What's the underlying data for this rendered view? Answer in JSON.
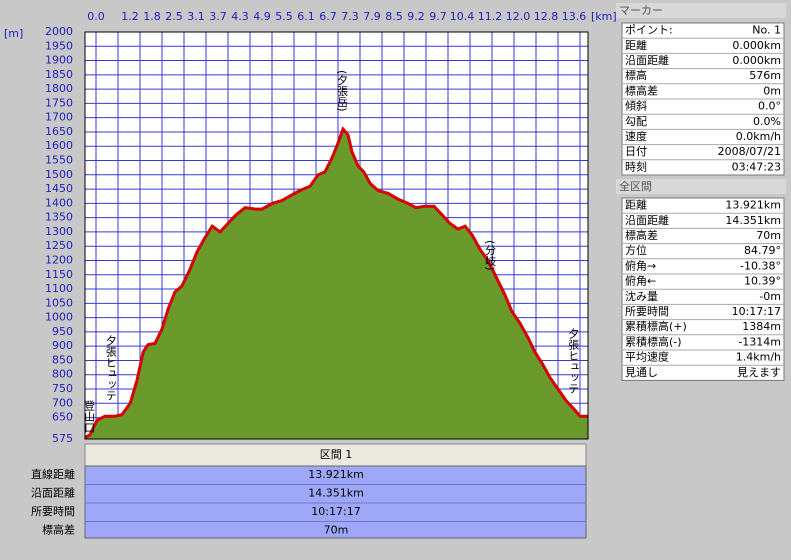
{
  "chart_data": {
    "type": "area",
    "y_unit": "[m]",
    "x_unit": "[km]",
    "top_axis_labels": [
      "0.0",
      "1.2",
      "1.8",
      "2.5",
      "3.1",
      "3.7",
      "4.3",
      "4.9",
      "5.5",
      "6.1",
      "6.7",
      "7.3",
      "7.9",
      "8.5",
      "9.2",
      "9.7",
      "10.4",
      "11.2",
      "12.0",
      "12.8",
      "13.6"
    ],
    "x": [
      0,
      0.14,
      0.33,
      0.55,
      0.83,
      1.02,
      1.25,
      1.44,
      1.61,
      1.74,
      1.94,
      2.13,
      2.3,
      2.49,
      2.68,
      2.91,
      3.1,
      3.32,
      3.52,
      3.74,
      3.96,
      4.18,
      4.43,
      4.71,
      4.9,
      5.18,
      5.45,
      5.73,
      5.95,
      6.23,
      6.45,
      6.64,
      6.84,
      7.0,
      7.14,
      7.28,
      7.39,
      7.56,
      7.72,
      7.89,
      8.11,
      8.39,
      8.66,
      8.94,
      9.16,
      9.41,
      9.66,
      9.88,
      10.1,
      10.32,
      10.52,
      10.71,
      10.93,
      11.15,
      11.35,
      11.62,
      11.82,
      12.04,
      12.26,
      12.45,
      12.65,
      12.87,
      13.09,
      13.31,
      13.53,
      13.7,
      13.92
    ],
    "series": [
      {
        "name": "標高",
        "color": "#d80000",
        "fill": "#6a9a2c",
        "values": [
          580,
          590,
          640,
          655,
          655,
          660,
          700,
          780,
          880,
          905,
          910,
          960,
          1030,
          1090,
          1110,
          1170,
          1230,
          1280,
          1320,
          1300,
          1330,
          1360,
          1385,
          1380,
          1380,
          1400,
          1410,
          1430,
          1445,
          1460,
          1500,
          1510,
          1560,
          1610,
          1660,
          1640,
          1580,
          1530,
          1510,
          1470,
          1445,
          1435,
          1415,
          1400,
          1385,
          1390,
          1390,
          1360,
          1330,
          1310,
          1320,
          1290,
          1240,
          1200,
          1150,
          1080,
          1020,
          980,
          930,
          880,
          840,
          790,
          750,
          710,
          680,
          655,
          655
        ]
      }
    ],
    "xlim": [
      0,
      13.921
    ],
    "ylim": [
      575,
      2000
    ],
    "yticks": [
      575,
      650,
      700,
      750,
      800,
      850,
      900,
      950,
      1000,
      1050,
      1100,
      1150,
      1200,
      1250,
      1300,
      1350,
      1400,
      1450,
      1500,
      1550,
      1600,
      1650,
      1700,
      1750,
      1800,
      1850,
      1900,
      1950,
      2000
    ],
    "grid": true,
    "annotations": [
      {
        "text": "登山口",
        "x": 0.1
      },
      {
        "text": "夕張ヒュッテ",
        "x": 0.7
      },
      {
        "text": "(夕張岳)",
        "x": 7.1
      },
      {
        "text": "(分岐)",
        "x": 11.2
      },
      {
        "text": "夕張ヒュッテ",
        "x": 13.5
      }
    ]
  },
  "section": {
    "title": "区間 1",
    "rows": [
      [
        "直線距離",
        "13.921km"
      ],
      [
        "沿面距離",
        "14.351km"
      ],
      [
        "所要時間",
        "10:17:17"
      ],
      [
        "標高差",
        "70m"
      ]
    ]
  },
  "marker": {
    "title": "マーカー",
    "rows": [
      [
        "ポイント:",
        "No. 1"
      ],
      [
        "距離",
        "0.000km"
      ],
      [
        "沿面距離",
        "0.000km"
      ],
      [
        "標高",
        "576m"
      ],
      [
        "標高差",
        "0m"
      ],
      [
        "傾斜",
        "0.0°"
      ],
      [
        "勾配",
        "0.0%"
      ],
      [
        "速度",
        "0.0km/h"
      ],
      [
        "日付",
        "2008/07/21"
      ],
      [
        "時刻",
        "03:47:23"
      ]
    ]
  },
  "all_sections": {
    "title": "全区間",
    "rows": [
      [
        "距離",
        "13.921km"
      ],
      [
        "沿面距離",
        "14.351km"
      ],
      [
        "標高差",
        "70m"
      ],
      [
        "方位",
        "84.79°"
      ],
      [
        "俯角→",
        "-10.38°"
      ],
      [
        "俯角←",
        "10.39°"
      ],
      [
        "沈み量",
        "-0m"
      ],
      [
        "所要時間",
        "10:17:17"
      ],
      [
        "累積標高(+)",
        "1384m"
      ],
      [
        "累積標高(-)",
        "-1314m"
      ],
      [
        "平均速度",
        "1.4km/h"
      ],
      [
        "見通し",
        "見えます"
      ]
    ]
  }
}
